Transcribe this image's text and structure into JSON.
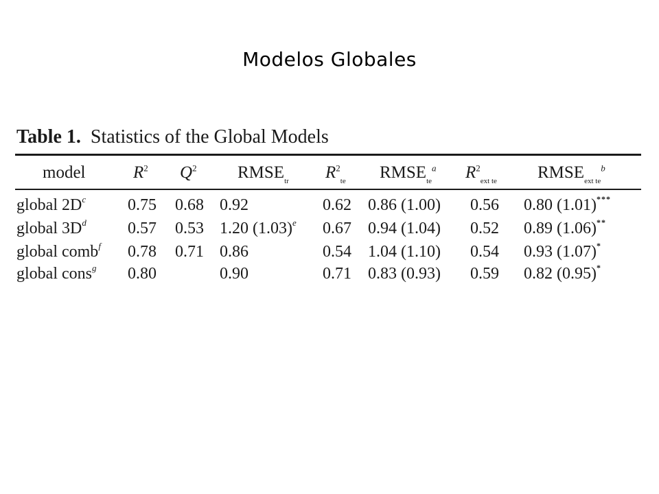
{
  "slide": {
    "title": "Modelos Globales"
  },
  "table": {
    "caption_label": "Table 1.",
    "caption_text": "Statistics of the Global Models",
    "headers": {
      "model": "model",
      "r2": "R",
      "r2_sup": "2",
      "q2": "Q",
      "q2_sup": "2",
      "rmse_tr": "RMSE",
      "rmse_tr_sub": "tr",
      "r2_te": "R",
      "r2_te_sup": "2",
      "r2_te_sub": "te",
      "rmse_te": "RMSE",
      "rmse_te_sub": "te",
      "rmse_te_note": "a",
      "r2_ext": "R",
      "r2_ext_sup": "2",
      "r2_ext_sub": "ext te",
      "rmse_ext": "RMSE",
      "rmse_ext_sub": "ext te",
      "rmse_ext_note": "b"
    },
    "rows": [
      {
        "model": "global 2D",
        "model_note": "c",
        "r2": "0.75",
        "q2": "0.68",
        "rmse_tr": "0.92",
        "rmse_tr_note": "",
        "r2_te": "0.62",
        "rmse_te": "0.86 (1.00)",
        "r2_ext": "0.56",
        "rmse_ext": "0.80 (1.01)",
        "rmse_ext_marks": "***"
      },
      {
        "model": "global 3D",
        "model_note": "d",
        "r2": "0.57",
        "q2": "0.53",
        "rmse_tr": "1.20 (1.03)",
        "rmse_tr_note": "e",
        "r2_te": "0.67",
        "rmse_te": "0.94 (1.04)",
        "r2_ext": "0.52",
        "rmse_ext": "0.89 (1.06)",
        "rmse_ext_marks": "**"
      },
      {
        "model": "global comb",
        "model_note": "f",
        "r2": "0.78",
        "q2": "0.71",
        "rmse_tr": "0.86",
        "rmse_tr_note": "",
        "r2_te": "0.54",
        "rmse_te": "1.04 (1.10)",
        "r2_ext": "0.54",
        "rmse_ext": "0.93 (1.07)",
        "rmse_ext_marks": "*"
      },
      {
        "model": "global cons",
        "model_note": "g",
        "r2": "0.80",
        "q2": "",
        "rmse_tr": "0.90",
        "rmse_tr_note": "",
        "r2_te": "0.71",
        "rmse_te": "0.83 (0.93)",
        "r2_ext": "0.59",
        "rmse_ext": "0.82 (0.95)",
        "rmse_ext_marks": "*"
      }
    ]
  }
}
